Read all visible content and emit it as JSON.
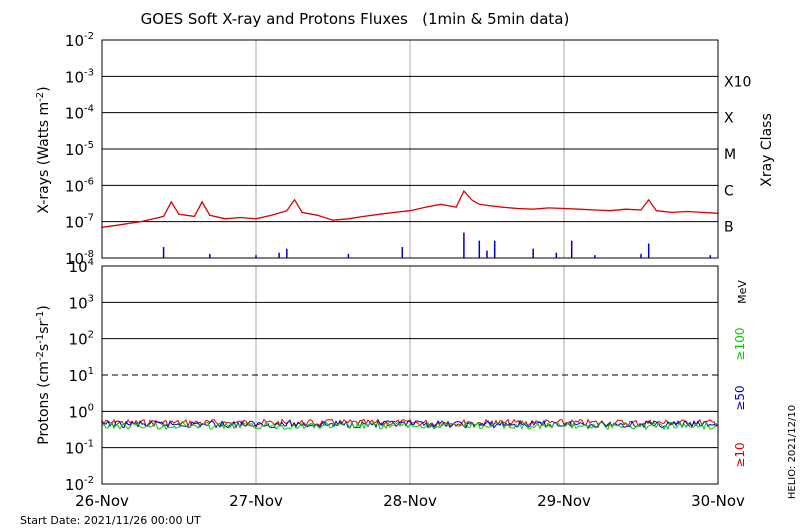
{
  "chart_data": {
    "type": "line",
    "title": "GOES Soft X-ray and Protons Fluxes   (1min & 5min data)",
    "x_ticks": [
      "26-Nov",
      "27-Nov",
      "28-Nov",
      "29-Nov",
      "30-Nov"
    ],
    "start_date_label": "Start Date: 2021/11/26 00:00 UT",
    "side_label": "HELIO: 2021/12/10",
    "xray_panel": {
      "ylabel_main": "X-rays (Watts m",
      "ylabel_sup": "-2",
      "ylabel_tail": ")",
      "log_scale": true,
      "ylim": [
        "1e-8",
        "1e-2"
      ],
      "y_ticks": [
        {
          "base": "10",
          "exp": "-2"
        },
        {
          "base": "10",
          "exp": "-3"
        },
        {
          "base": "10",
          "exp": "-4"
        },
        {
          "base": "10",
          "exp": "-5"
        },
        {
          "base": "10",
          "exp": "-6"
        },
        {
          "base": "10",
          "exp": "-7"
        },
        {
          "base": "10",
          "exp": "-8"
        }
      ],
      "class_title": "Xray Class",
      "classes": [
        "X10",
        "X",
        "M",
        "C",
        "B"
      ],
      "series": [
        {
          "color": "#dd0000",
          "unit": "W/m^2",
          "x_days": [
            0,
            0.1,
            0.25,
            0.4,
            0.45,
            0.5,
            0.55,
            0.6,
            0.65,
            0.7,
            0.8,
            0.9,
            1.0,
            1.1,
            1.2,
            1.25,
            1.3,
            1.4,
            1.5,
            1.6,
            1.7,
            1.8,
            1.9,
            2.0,
            2.1,
            2.2,
            2.3,
            2.35,
            2.4,
            2.45,
            2.5,
            2.6,
            2.7,
            2.8,
            2.9,
            3.0,
            3.1,
            3.2,
            3.3,
            3.4,
            3.5,
            3.55,
            3.6,
            3.7,
            3.8,
            3.9,
            4.0
          ],
          "values": [
            "7e-8",
            "8e-8",
            "1e-7",
            "1.4e-7",
            "3.5e-7",
            "1.6e-7",
            "1.5e-7",
            "1.4e-7",
            "3.5e-7",
            "1.5e-7",
            "1.2e-7",
            "1.3e-7",
            "1.2e-7",
            "1.5e-7",
            "2e-7",
            "4e-7",
            "1.8e-7",
            "1.5e-7",
            "1.1e-7",
            "1.2e-7",
            "1.4e-7",
            "1.6e-7",
            "1.8e-7",
            "2e-7",
            "2.5e-7",
            "3e-7",
            "2.5e-7",
            "7e-7",
            "4e-7",
            "3e-7",
            "2.8e-7",
            "2.5e-7",
            "2.3e-7",
            "2.2e-7",
            "2.4e-7",
            "2.3e-7",
            "2.2e-7",
            "2.1e-7",
            "2e-7",
            "2.2e-7",
            "2.1e-7",
            "4e-7",
            "2e-7",
            "1.8e-7",
            "1.9e-7",
            "1.8e-7",
            "1.7e-7"
          ]
        },
        {
          "color": "#0000cc",
          "unit": "W/m^2",
          "x_days": [
            0.4,
            0.7,
            1.0,
            1.15,
            1.2,
            1.6,
            1.95,
            2.35,
            2.45,
            2.5,
            2.55,
            2.8,
            2.95,
            3.05,
            3.2,
            3.5,
            3.55,
            3.95
          ],
          "values": [
            "2e-8",
            "1.3e-8",
            "1.2e-8",
            "1.4e-8",
            "1.8e-8",
            "1.3e-8",
            "2e-8",
            "5e-8",
            "3e-8",
            "1.6e-8",
            "3e-8",
            "1.8e-8",
            "1.4e-8",
            "3e-8",
            "1.2e-8",
            "1.3e-8",
            "2.5e-8",
            "1.2e-8"
          ]
        }
      ]
    },
    "proton_panel": {
      "ylabel_main": "Protons (cm",
      "ylabel_sup1": "-2",
      "ylabel_mid": "s",
      "ylabel_sup2": "-1",
      "ylabel_mid2": "sr",
      "ylabel_sup3": "-1",
      "ylabel_tail": ")",
      "log_scale": true,
      "ylim": [
        "1e-2",
        "1e4"
      ],
      "y_ticks": [
        {
          "base": "10",
          "exp": "4"
        },
        {
          "base": "10",
          "exp": "3"
        },
        {
          "base": "10",
          "exp": "2"
        },
        {
          "base": "10",
          "exp": "1"
        },
        {
          "base": "10",
          "exp": "0"
        },
        {
          "base": "10",
          "exp": "-1"
        },
        {
          "base": "10",
          "exp": "-2"
        }
      ],
      "threshold_line": "10 (dashed)",
      "unit_label": "MeV",
      "series": [
        {
          "name": "≥10",
          "color": "#dd0000",
          "level": "0.48"
        },
        {
          "name": "≥50",
          "color": "#0000cc",
          "level": "0.44"
        },
        {
          "name": "≥100",
          "color": "#00cc00",
          "level": "0.40"
        }
      ]
    }
  }
}
